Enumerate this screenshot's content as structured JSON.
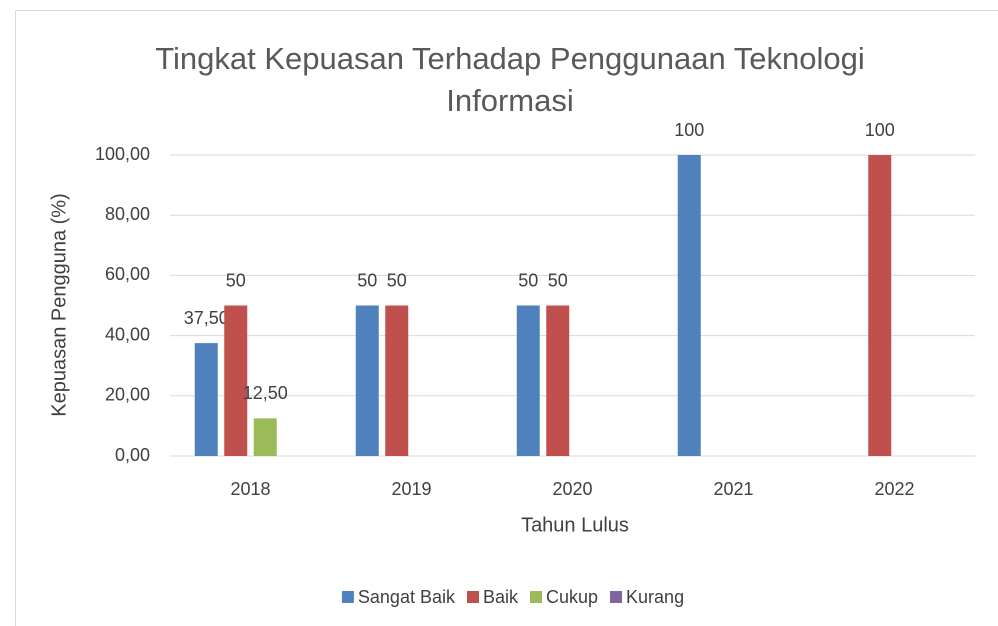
{
  "chart_data": {
    "type": "bar",
    "title": "Tingkat Kepuasan Terhadap Penggunaan Teknologi Informasi",
    "x_label": "Tahun Lulus",
    "y_label": "Kepuasan Pengguna (%)",
    "categories": [
      "2018",
      "2019",
      "2020",
      "2021",
      "2022"
    ],
    "series": [
      {
        "name": "Sangat Baik",
        "color": "#4f81bd",
        "values": [
          37.5,
          50,
          50,
          100,
          null
        ],
        "value_labels": [
          "37,50",
          "50",
          "50",
          "100",
          null
        ]
      },
      {
        "name": "Baik",
        "color": "#c0504d",
        "values": [
          50,
          50,
          50,
          null,
          100
        ]
      },
      {
        "name": "Cukup",
        "color": "#9bbb59",
        "values": [
          12.5,
          null,
          null,
          null,
          null
        ],
        "value_labels": [
          "12,50",
          null,
          null,
          null,
          null
        ]
      },
      {
        "name": "Kurang",
        "color": "#8064a2",
        "values": [
          null,
          null,
          null,
          null,
          null
        ]
      }
    ],
    "ylim": [
      0,
      100
    ],
    "yticks": [
      {
        "value": 0,
        "label": "0,00"
      },
      {
        "value": 20,
        "label": "20,00"
      },
      {
        "value": 40,
        "label": "40,00"
      },
      {
        "value": 60,
        "label": "60,00"
      },
      {
        "value": 80,
        "label": "80,00"
      },
      {
        "value": 100,
        "label": "100,00"
      }
    ],
    "grid": true,
    "legend": "bottom"
  }
}
